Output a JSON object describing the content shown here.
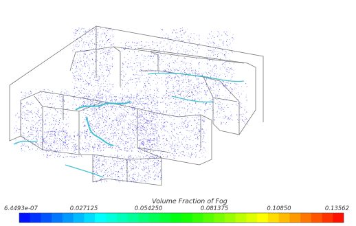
{
  "legend": {
    "title": "Volume Fraction of Fog",
    "tick_labels": [
      "6.4493e-07",
      "0.027125",
      "0.054250",
      "0.081375",
      "0.10850",
      "0.13562"
    ],
    "min": 6.4493e-07,
    "max": 0.13562,
    "colormap": [
      "#0000ff",
      "#00ffff",
      "#00ff00",
      "#ffff00",
      "#ff0000"
    ]
  },
  "scene": {
    "particle_color": "#3a3ae8",
    "edge_color": "#777777",
    "deposit_color": "#22b8c8"
  }
}
